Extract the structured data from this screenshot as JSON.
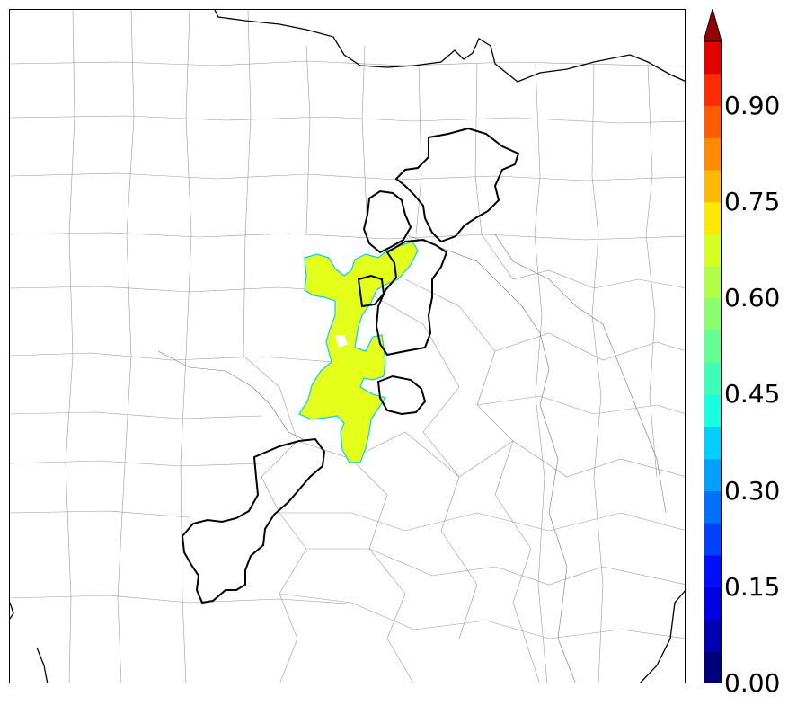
{
  "legend": {
    "ticks": [
      {
        "value": 0.0,
        "label": "0.00"
      },
      {
        "value": 0.15,
        "label": "0.15"
      },
      {
        "value": 0.3,
        "label": "0.30"
      },
      {
        "value": 0.45,
        "label": "0.45"
      },
      {
        "value": 0.6,
        "label": "0.60"
      },
      {
        "value": 0.75,
        "label": "0.75"
      },
      {
        "value": 0.9,
        "label": "0.90"
      }
    ],
    "range": [
      0,
      1
    ],
    "step": 0.05,
    "extend": "max",
    "colors": [
      "#00007f",
      "#0000b2",
      "#0000e5",
      "#0010ff",
      "#0040ff",
      "#0070ff",
      "#00a0ff",
      "#00d0ff",
      "#16ffe1",
      "#3cffba",
      "#63ff93",
      "#89ff6d",
      "#b0ff46",
      "#d6ff1f",
      "#fce800",
      "#ffb900",
      "#ff8a00",
      "#ff5b00",
      "#ff2c00",
      "#e50000",
      "#990000"
    ]
  },
  "map": {
    "filled_region_color": "#e3ff1a",
    "filled_region_value": 0.62,
    "outline_color": "#000000"
  }
}
